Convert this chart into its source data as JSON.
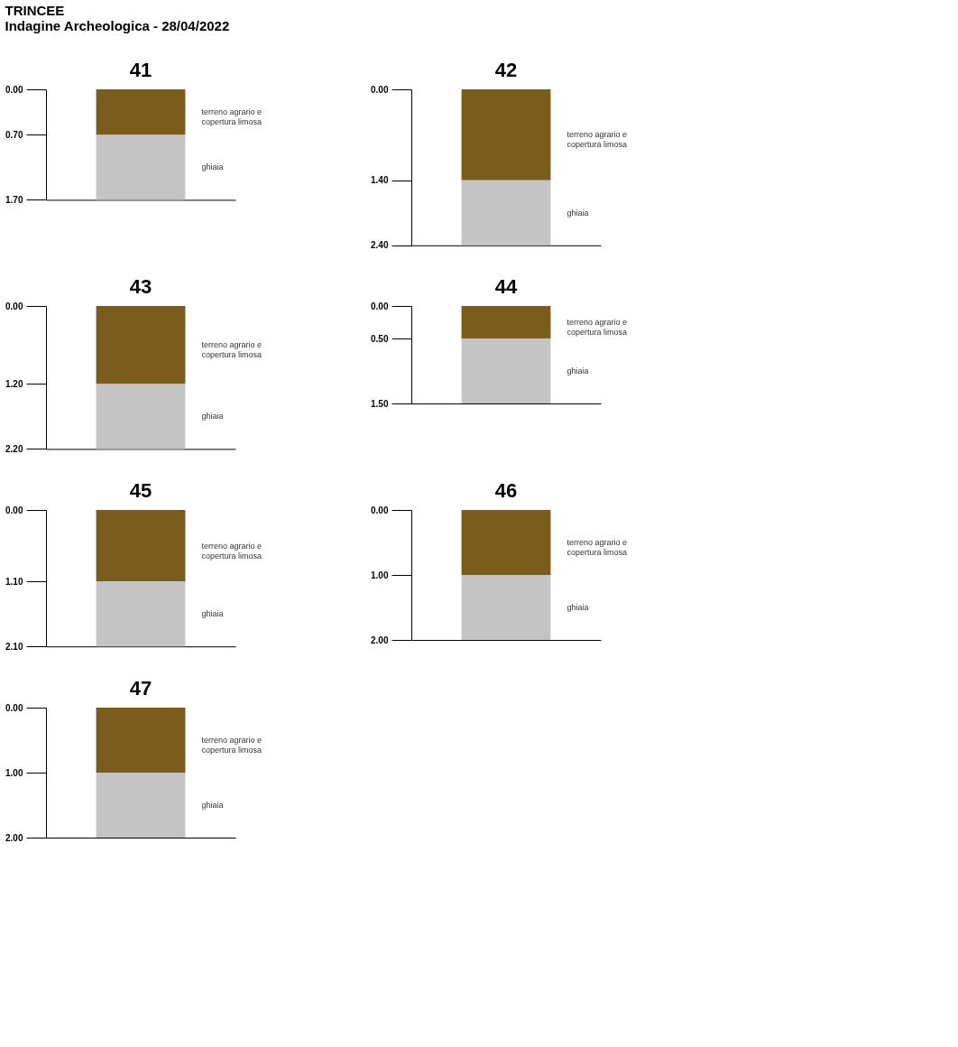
{
  "chart_data": [
    {
      "type": "bar",
      "title": "41",
      "annotations": [
        "TRINCEE",
        "Indagine Archeologica - 28/04/2022"
      ],
      "categories": [
        null
      ],
      "stacked": true,
      "legend": false,
      "grid": false,
      "tick_labels": "y",
      "series": [
        {
          "name": "terreno agrario e copertura limosa",
          "color": "#7a5c1c",
          "values": [
            0.7
          ]
        },
        {
          "name": "ghiaia",
          "color": "#c4c4c4",
          "values": [
            1.0
          ]
        }
      ],
      "ylim": [
        1.7,
        0
      ],
      "yticks": [
        {
          "value": 0,
          "label": "0.00"
        },
        {
          "value": 0.7,
          "label": "0.70"
        },
        {
          "value": 1.7,
          "label": "1.70"
        }
      ]
    },
    {
      "type": "bar",
      "title": "42",
      "categories": [
        null
      ],
      "stacked": true,
      "legend": false,
      "grid": false,
      "tick_labels": "y",
      "series": [
        {
          "name": "terreno agrario e copertura limosa",
          "color": "#7a5c1c",
          "values": [
            1.4
          ]
        },
        {
          "name": "ghiaia",
          "color": "#c4c4c4",
          "values": [
            1.0
          ]
        }
      ],
      "ylim": [
        2.4,
        0
      ],
      "yticks": [
        {
          "value": 0,
          "label": "0.00"
        },
        {
          "value": 1.4,
          "label": "1.40"
        },
        {
          "value": 2.4,
          "label": "2.40"
        }
      ]
    },
    {
      "type": "bar",
      "title": "43",
      "categories": [
        null
      ],
      "stacked": true,
      "legend": false,
      "grid": false,
      "tick_labels": "y",
      "series": [
        {
          "name": "terreno agrario e copertura limosa",
          "color": "#7a5c1c",
          "values": [
            1.2
          ]
        },
        {
          "name": "ghiaia",
          "color": "#c4c4c4",
          "values": [
            1.0
          ]
        }
      ],
      "ylim": [
        2.2,
        0
      ],
      "yticks": [
        {
          "value": 0,
          "label": "0.00"
        },
        {
          "value": 1.2,
          "label": "1.20"
        },
        {
          "value": 2.2,
          "label": "2.20"
        }
      ]
    },
    {
      "type": "bar",
      "title": "44",
      "categories": [
        null
      ],
      "stacked": true,
      "legend": false,
      "grid": false,
      "tick_labels": "y",
      "series": [
        {
          "name": "terreno agrario e copertura limosa",
          "color": "#7a5c1c",
          "values": [
            0.5
          ]
        },
        {
          "name": "ghiaia",
          "color": "#c4c4c4",
          "values": [
            1.0
          ]
        }
      ],
      "ylim": [
        1.5,
        0
      ],
      "yticks": [
        {
          "value": 0,
          "label": "0.00"
        },
        {
          "value": 0.5,
          "label": "0.50"
        },
        {
          "value": 1.5,
          "label": "1.50"
        }
      ]
    },
    {
      "type": "bar",
      "title": "45",
      "categories": [
        null
      ],
      "stacked": true,
      "legend": false,
      "grid": false,
      "tick_labels": "y",
      "series": [
        {
          "name": "terreno agrario e copertura limosa",
          "color": "#7a5c1c",
          "values": [
            1.1
          ]
        },
        {
          "name": "ghiaia",
          "color": "#c4c4c4",
          "values": [
            1.0
          ]
        }
      ],
      "ylim": [
        2.1,
        0
      ],
      "yticks": [
        {
          "value": 0,
          "label": "0.00"
        },
        {
          "value": 1.1,
          "label": "1.10"
        },
        {
          "value": 2.1,
          "label": "2.10"
        }
      ]
    },
    {
      "type": "bar",
      "title": "46",
      "categories": [
        null
      ],
      "stacked": true,
      "legend": false,
      "grid": false,
      "tick_labels": "y",
      "series": [
        {
          "name": "terreno agrario e copertura limosa",
          "color": "#7a5c1c",
          "values": [
            1.0
          ]
        },
        {
          "name": "ghiaia",
          "color": "#c4c4c4",
          "values": [
            1.0
          ]
        }
      ],
      "ylim": [
        2.0,
        0
      ],
      "yticks": [
        {
          "value": 0,
          "label": "0.00"
        },
        {
          "value": 1.0,
          "label": "1.00"
        },
        {
          "value": 2.0,
          "label": "2.00"
        }
      ]
    },
    {
      "type": "bar",
      "title": "47",
      "categories": [
        null
      ],
      "stacked": true,
      "legend": false,
      "grid": false,
      "tick_labels": "y",
      "series": [
        {
          "name": "terreno agrario e copertura limosa",
          "color": "#7a5c1c",
          "values": [
            1.0
          ]
        },
        {
          "name": "ghiaia",
          "color": "#c4c4c4",
          "values": [
            1.0
          ]
        }
      ],
      "ylim": [
        2.0,
        0
      ],
      "yticks": [
        {
          "value": 0,
          "label": "0.00"
        },
        {
          "value": 1.0,
          "label": "1.00"
        },
        {
          "value": 2.0,
          "label": "2.00"
        }
      ]
    }
  ]
}
